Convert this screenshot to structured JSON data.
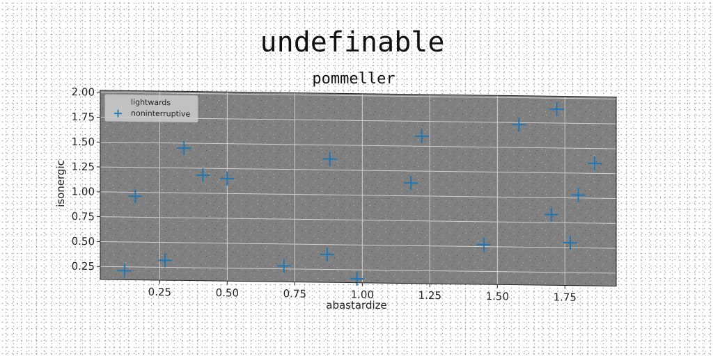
{
  "chart_data": {
    "type": "scatter",
    "title": "undefinable",
    "subtitle": "pommeller",
    "xlabel": "abastardize",
    "ylabel": "isonergic",
    "xlim": [
      0.03,
      1.94
    ],
    "ylim": [
      0.12,
      2.02
    ],
    "xticks": [
      0.25,
      0.5,
      0.75,
      1.0,
      1.25,
      1.5,
      1.75
    ],
    "xtick_labels": [
      "0.25",
      "0.50",
      "0.75",
      "1.00",
      "1.25",
      "1.50",
      "1.75"
    ],
    "yticks": [
      0.25,
      0.5,
      0.75,
      1.0,
      1.25,
      1.5,
      1.75,
      2.0
    ],
    "ytick_labels": [
      "0.25",
      "0.50",
      "0.75",
      "1.00",
      "1.25",
      "1.50",
      "1.75",
      "2.00"
    ],
    "grid": true,
    "legend_position": "top-left",
    "series": [
      {
        "name": "lightwards",
        "marker": "none",
        "color": "#aaaaaa",
        "points": []
      },
      {
        "name": "noninterruptive",
        "marker": "plus",
        "color": "#1f77b4",
        "points": [
          {
            "x": 0.12,
            "y": 0.21
          },
          {
            "x": 0.16,
            "y": 0.96
          },
          {
            "x": 0.27,
            "y": 0.32
          },
          {
            "x": 0.34,
            "y": 1.45
          },
          {
            "x": 0.41,
            "y": 1.18
          },
          {
            "x": 0.5,
            "y": 1.15
          },
          {
            "x": 0.71,
            "y": 0.28
          },
          {
            "x": 0.87,
            "y": 0.4
          },
          {
            "x": 0.88,
            "y": 1.36
          },
          {
            "x": 0.98,
            "y": 0.16
          },
          {
            "x": 1.18,
            "y": 1.13
          },
          {
            "x": 1.22,
            "y": 1.6
          },
          {
            "x": 1.45,
            "y": 0.52
          },
          {
            "x": 1.58,
            "y": 1.73
          },
          {
            "x": 1.7,
            "y": 0.83
          },
          {
            "x": 1.72,
            "y": 1.89
          },
          {
            "x": 1.77,
            "y": 0.55
          },
          {
            "x": 1.8,
            "y": 1.03
          },
          {
            "x": 1.86,
            "y": 1.35
          }
        ]
      }
    ]
  },
  "colors": {
    "plot_background": "#808080",
    "grid": "#d0d0d0",
    "marker": "#1f77b4"
  }
}
